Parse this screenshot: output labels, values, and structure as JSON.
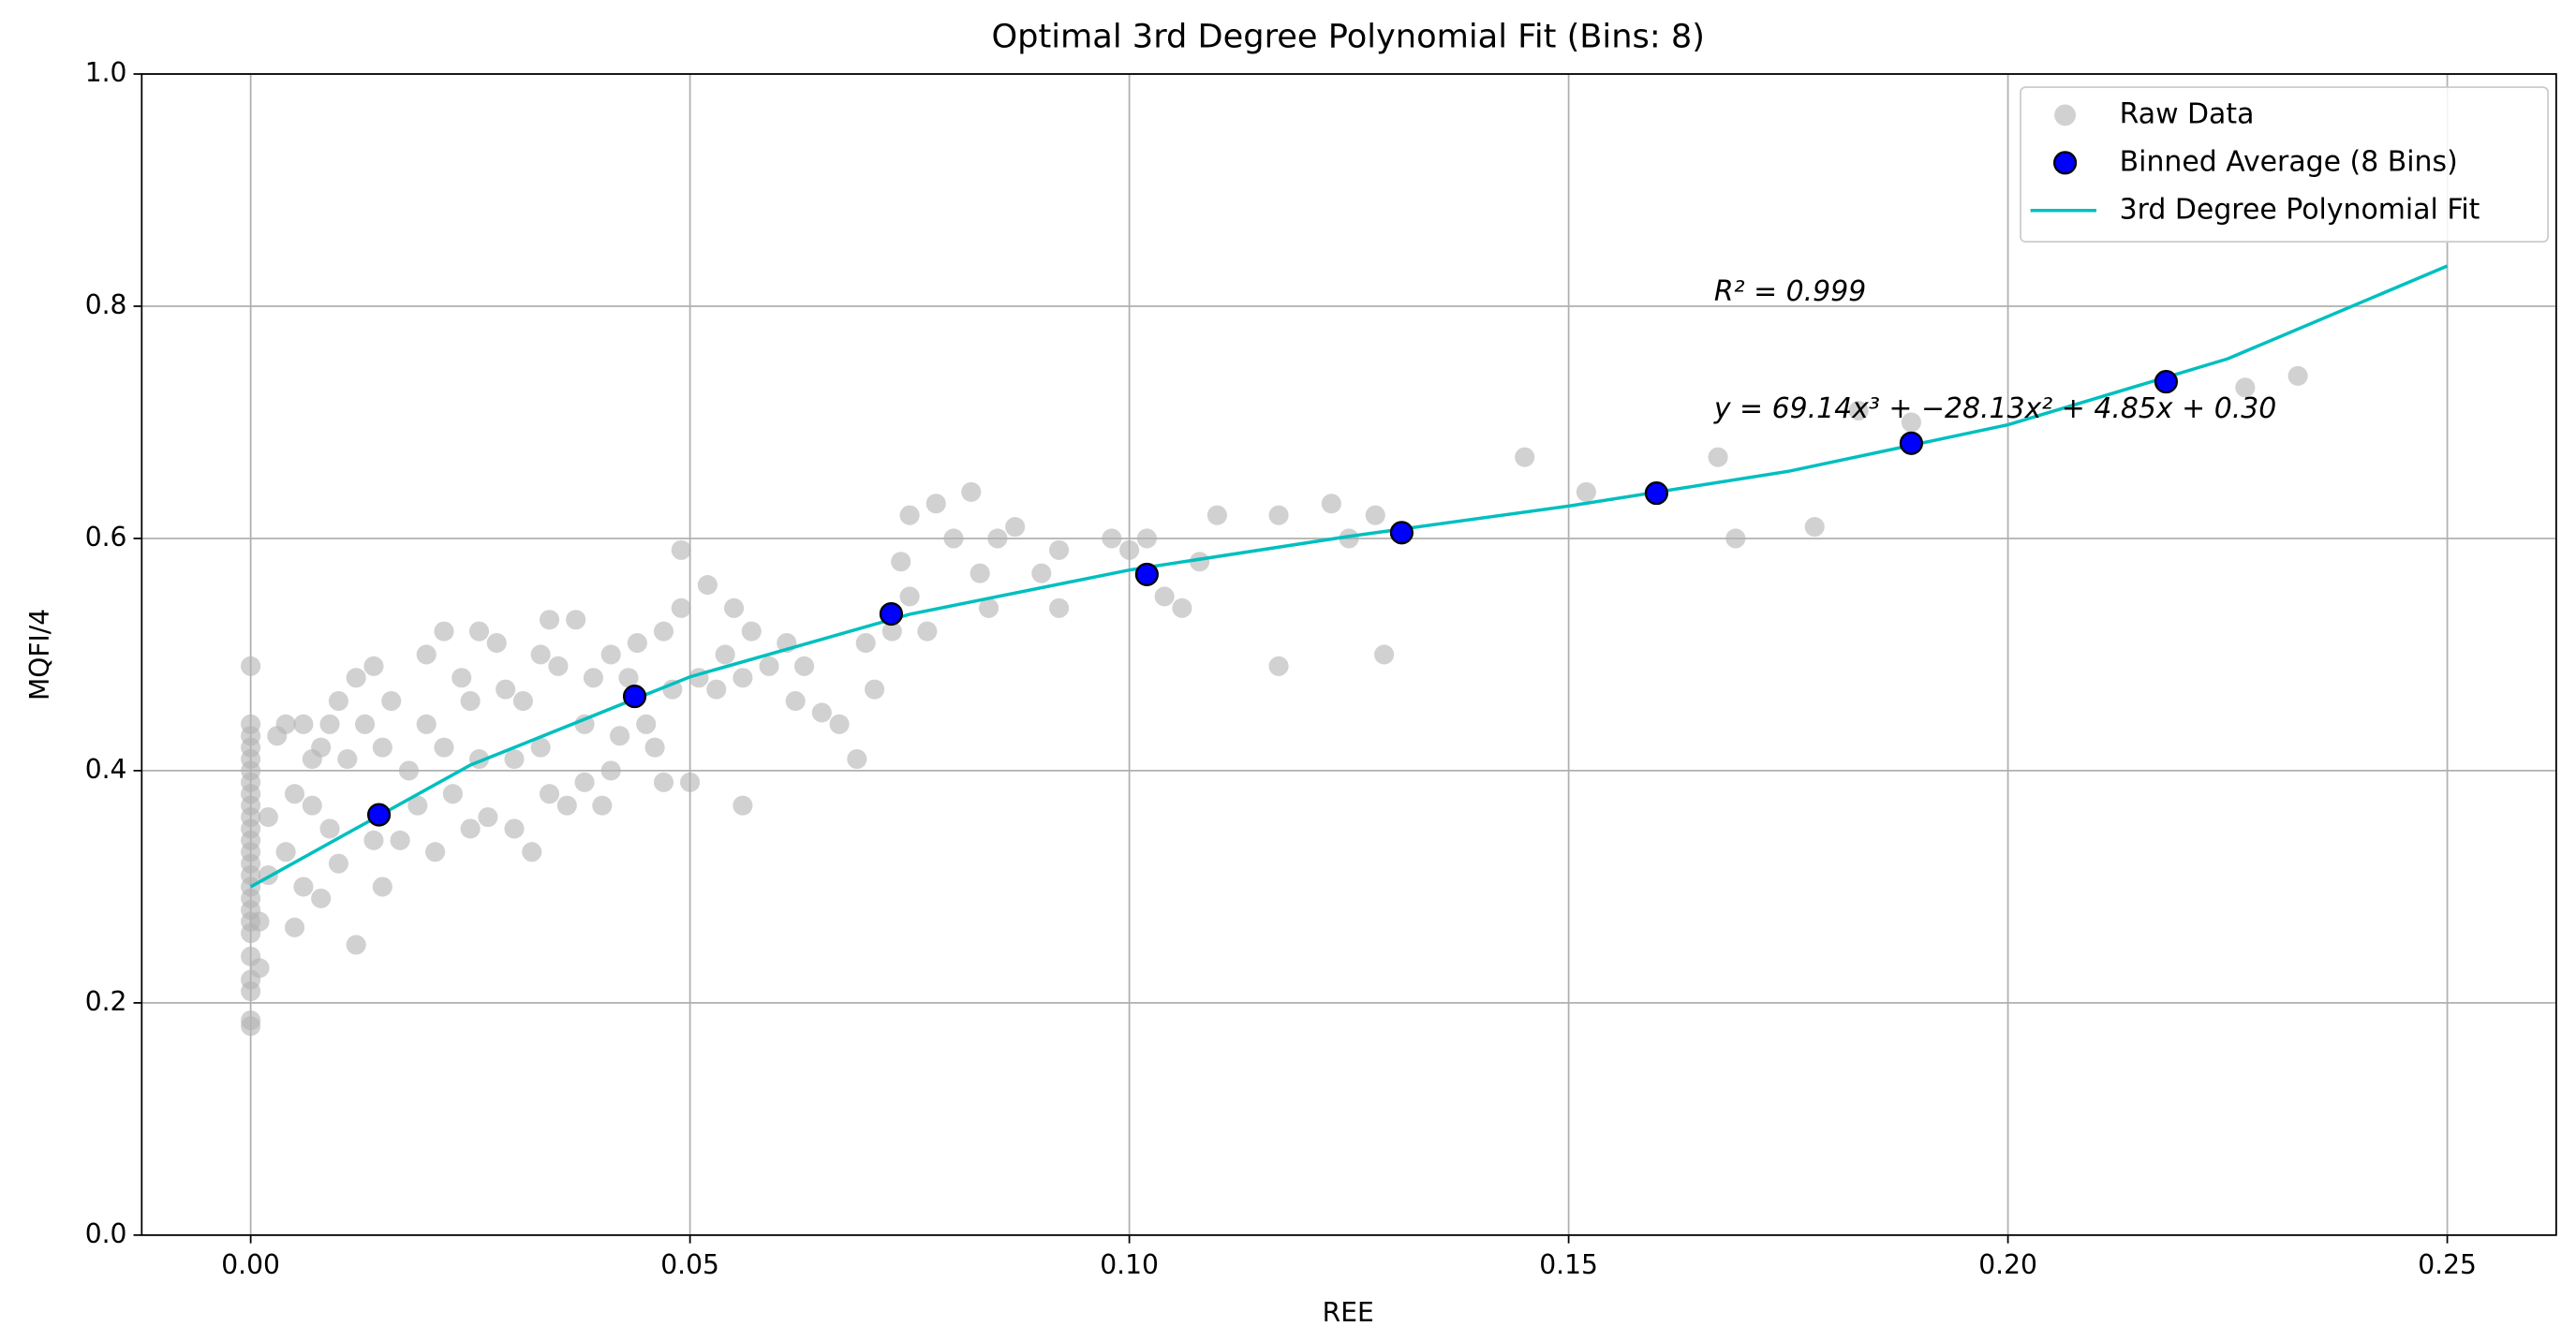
{
  "chart_data": {
    "type": "scatter",
    "title": "Optimal 3rd Degree Polynomial Fit (Bins: 8)",
    "x_label": "REE",
    "y_label": "MQFI/4",
    "xlim": [
      -0.0124,
      0.2624
    ],
    "ylim": [
      0,
      1
    ],
    "xticks": [
      {
        "value": 0,
        "label": "0.00"
      },
      {
        "value": 0.05,
        "label": "0.05"
      },
      {
        "value": 0.1,
        "label": "0.10"
      },
      {
        "value": 0.15,
        "label": "0.15"
      },
      {
        "value": 0.2,
        "label": "0.20"
      },
      {
        "value": 0.25,
        "label": "0.25"
      }
    ],
    "yticks": [
      {
        "value": 0,
        "label": "0.0"
      },
      {
        "value": 0.2,
        "label": "0.2"
      },
      {
        "value": 0.4,
        "label": "0.4"
      },
      {
        "value": 0.6,
        "label": "0.6"
      },
      {
        "value": 0.8,
        "label": "0.8"
      },
      {
        "value": 1,
        "label": "1.0"
      }
    ],
    "grid": true,
    "legend": "upper right",
    "annotations": [
      "R² = 0.999",
      "y = 69.14x³ + −28.13x² + 4.85x + 0.30"
    ],
    "series": [
      {
        "name": "Raw Data",
        "type": "scatter",
        "color": "#b3b3b3",
        "x": [
          0,
          0,
          0,
          0,
          0,
          0,
          0,
          0,
          0,
          0,
          0,
          0,
          0,
          0,
          0,
          0,
          0,
          0,
          0,
          0,
          0,
          0,
          0,
          0,
          0,
          0.001,
          0.001,
          0.002,
          0.002,
          0.003,
          0.004,
          0.004,
          0.005,
          0.005,
          0.006,
          0.006,
          0.007,
          0.007,
          0.008,
          0.008,
          0.009,
          0.009,
          0.01,
          0.01,
          0.011,
          0.012,
          0.012,
          0.013,
          0.014,
          0.014,
          0.015,
          0.015,
          0.016,
          0.017,
          0.018,
          0.019,
          0.02,
          0.02,
          0.021,
          0.022,
          0.022,
          0.023,
          0.024,
          0.025,
          0.025,
          0.026,
          0.026,
          0.027,
          0.028,
          0.029,
          0.03,
          0.03,
          0.031,
          0.032,
          0.033,
          0.033,
          0.034,
          0.034,
          0.035,
          0.036,
          0.037,
          0.038,
          0.038,
          0.039,
          0.04,
          0.041,
          0.041,
          0.042,
          0.043,
          0.044,
          0.045,
          0.046,
          0.047,
          0.047,
          0.048,
          0.049,
          0.049,
          0.05,
          0.051,
          0.052,
          0.053,
          0.054,
          0.055,
          0.056,
          0.056,
          0.057,
          0.059,
          0.061,
          0.062,
          0.063,
          0.065,
          0.067,
          0.069,
          0.07,
          0.071,
          0.073,
          0.074,
          0.075,
          0.075,
          0.077,
          0.078,
          0.08,
          0.082,
          0.083,
          0.084,
          0.085,
          0.087,
          0.09,
          0.092,
          0.092,
          0.098,
          0.1,
          0.102,
          0.104,
          0.106,
          0.108,
          0.11,
          0.117,
          0.117,
          0.123,
          0.125,
          0.128,
          0.129,
          0.145,
          0.152,
          0.167,
          0.169,
          0.178,
          0.183,
          0.189,
          0.227,
          0.233
        ],
        "values": [
          0.18,
          0.185,
          0.21,
          0.22,
          0.24,
          0.26,
          0.27,
          0.28,
          0.29,
          0.3,
          0.31,
          0.32,
          0.33,
          0.34,
          0.35,
          0.36,
          0.37,
          0.38,
          0.39,
          0.4,
          0.41,
          0.42,
          0.43,
          0.44,
          0.49,
          0.23,
          0.27,
          0.31,
          0.36,
          0.43,
          0.44,
          0.33,
          0.265,
          0.38,
          0.3,
          0.44,
          0.37,
          0.41,
          0.29,
          0.42,
          0.35,
          0.44,
          0.32,
          0.46,
          0.41,
          0.48,
          0.25,
          0.44,
          0.34,
          0.49,
          0.3,
          0.42,
          0.46,
          0.34,
          0.4,
          0.37,
          0.5,
          0.44,
          0.33,
          0.52,
          0.42,
          0.38,
          0.48,
          0.35,
          0.46,
          0.52,
          0.41,
          0.36,
          0.51,
          0.47,
          0.41,
          0.35,
          0.46,
          0.33,
          0.5,
          0.42,
          0.38,
          0.53,
          0.49,
          0.37,
          0.53,
          0.44,
          0.39,
          0.48,
          0.37,
          0.4,
          0.5,
          0.43,
          0.48,
          0.51,
          0.44,
          0.42,
          0.52,
          0.39,
          0.47,
          0.54,
          0.59,
          0.39,
          0.48,
          0.56,
          0.47,
          0.5,
          0.54,
          0.37,
          0.48,
          0.52,
          0.49,
          0.51,
          0.46,
          0.49,
          0.45,
          0.44,
          0.41,
          0.51,
          0.47,
          0.52,
          0.58,
          0.55,
          0.62,
          0.52,
          0.63,
          0.6,
          0.64,
          0.57,
          0.54,
          0.6,
          0.61,
          0.57,
          0.59,
          0.54,
          0.6,
          0.59,
          0.6,
          0.55,
          0.54,
          0.58,
          0.62,
          0.62,
          0.49,
          0.63,
          0.6,
          0.62,
          0.5,
          0.67,
          0.64,
          0.67,
          0.6,
          0.61,
          0.71,
          0.7,
          0.73,
          0.74
        ]
      },
      {
        "name": "Binned Average (8 Bins)",
        "type": "scatter",
        "color": "#0000ff",
        "x": [
          0.0146,
          0.0437,
          0.0729,
          0.102,
          0.131,
          0.16,
          0.189,
          0.218
        ],
        "values": [
          0.362,
          0.464,
          0.535,
          0.569,
          0.605,
          0.639,
          0.682,
          0.735
        ]
      },
      {
        "name": "3rd Degree Polynomial Fit",
        "type": "line",
        "color": "#00bfbf",
        "x": [
          0,
          0.025,
          0.05,
          0.075,
          0.1,
          0.125,
          0.15,
          0.175,
          0.2,
          0.225,
          0.25
        ],
        "values": [
          0.3,
          0.4048,
          0.4808,
          0.5347,
          0.5728,
          0.6018,
          0.6279,
          0.6578,
          0.6979,
          0.7547,
          0.8347
        ]
      }
    ]
  }
}
